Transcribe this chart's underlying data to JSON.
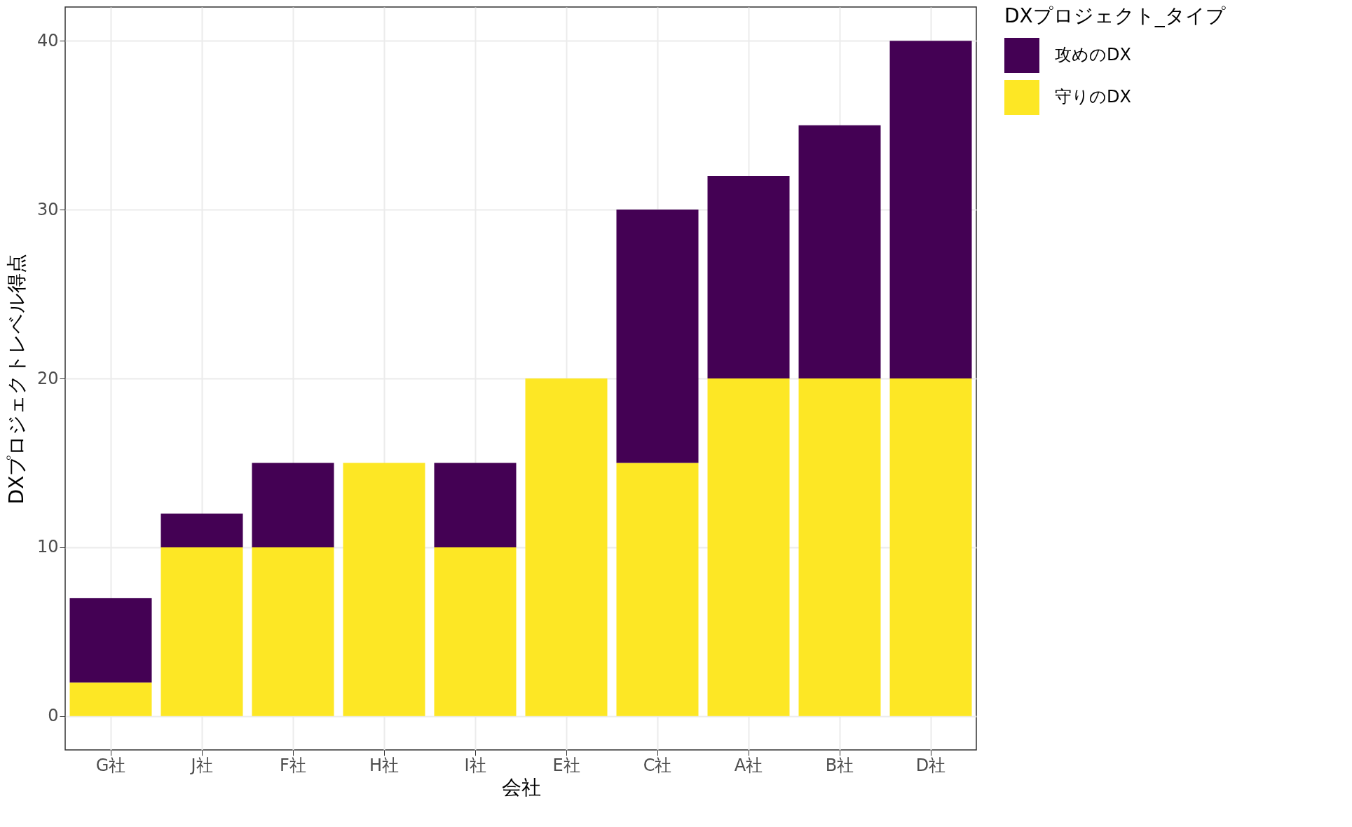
{
  "chart_data": {
    "type": "bar",
    "stacked": true,
    "xlabel": "会社",
    "ylabel": "DXプロジェクトレベル得点",
    "legend_title": "DXプロジェクト_タイプ",
    "legend": "right",
    "categories": [
      "G社",
      "J社",
      "F社",
      "H社",
      "I社",
      "E社",
      "C社",
      "A社",
      "B社",
      "D社"
    ],
    "series": [
      {
        "name": "守りのDX",
        "color": "#fde725",
        "values": [
          2,
          10,
          10,
          15,
          10,
          20,
          15,
          20,
          20,
          20
        ]
      },
      {
        "name": "攻めのDX",
        "color": "#440154",
        "values": [
          5,
          2,
          5,
          0,
          5,
          0,
          15,
          12,
          15,
          20
        ]
      }
    ],
    "ylim": [
      -2,
      42
    ],
    "yticks": [
      0,
      10,
      20,
      30,
      40
    ],
    "grid": true
  }
}
